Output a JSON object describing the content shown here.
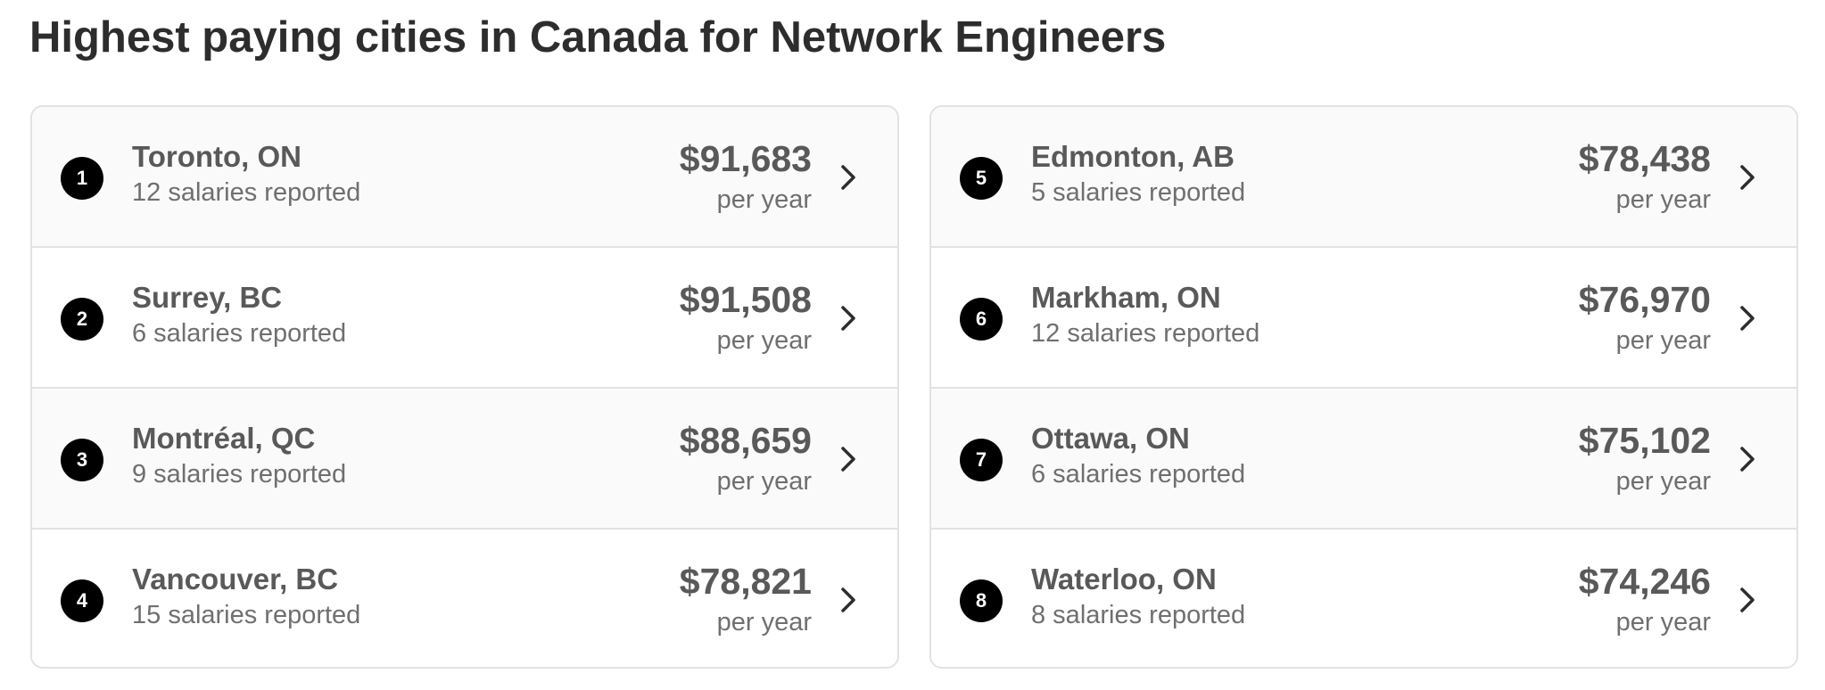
{
  "page": {
    "title": "Highest paying cities in Canada for Network Engineers"
  },
  "cities_left": [
    {
      "rank": "1",
      "city": "Toronto, ON",
      "reports": "12 salaries reported",
      "salary": "$91,683",
      "period": "per year"
    },
    {
      "rank": "2",
      "city": "Surrey, BC",
      "reports": "6 salaries reported",
      "salary": "$91,508",
      "period": "per year"
    },
    {
      "rank": "3",
      "city": "Montréal, QC",
      "reports": "9 salaries reported",
      "salary": "$88,659",
      "period": "per year"
    },
    {
      "rank": "4",
      "city": "Vancouver, BC",
      "reports": "15 salaries reported",
      "salary": "$78,821",
      "period": "per year"
    }
  ],
  "cities_right": [
    {
      "rank": "5",
      "city": "Edmonton, AB",
      "reports": "5 salaries reported",
      "salary": "$78,438",
      "period": "per year"
    },
    {
      "rank": "6",
      "city": "Markham, ON",
      "reports": "12 salaries reported",
      "salary": "$76,970",
      "period": "per year"
    },
    {
      "rank": "7",
      "city": "Ottawa, ON",
      "reports": "6 salaries reported",
      "salary": "$75,102",
      "period": "per year"
    },
    {
      "rank": "8",
      "city": "Waterloo, ON",
      "reports": "8 salaries reported",
      "salary": "$74,246",
      "period": "per year"
    }
  ],
  "icons": {
    "row_arrow": "chevron-right-icon"
  },
  "colors": {
    "rank_badge": "#000000",
    "text_primary": "#2d2d2d",
    "text_secondary": "#595959",
    "border": "#e4e2e0",
    "row_shaded": "#fafafa"
  }
}
